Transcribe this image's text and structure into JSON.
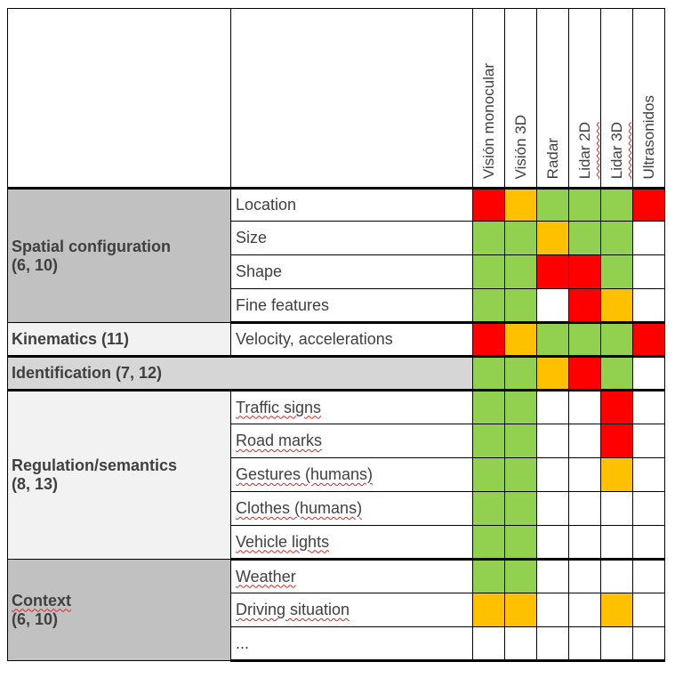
{
  "colors": {
    "green": "#92d050",
    "orange": "#ffc000",
    "red": "#ff0000",
    "white": "#ffffff"
  },
  "sensors": [
    "Visión monocular",
    "Visión 3D",
    "Radar",
    "Lidar 2D",
    "Lidar 3D",
    "Ultrasonidos"
  ],
  "categories": {
    "spatial": {
      "title": "Spatial configuration",
      "refs": "(6, 10)"
    },
    "kinematics": {
      "title": "Kinematics (11)"
    },
    "identification": {
      "title": "Identification (7, 12)"
    },
    "regulation": {
      "title": "Regulation/semantics",
      "refs": "(8, 13)"
    },
    "context": {
      "title": "Context",
      "refs": "(6, 10)"
    }
  },
  "features": {
    "location": "Location",
    "size": "Size",
    "shape": "Shape",
    "fine_features": "Fine features",
    "velocity": "Velocity, accelerations",
    "traffic_signs": "Traffic signs",
    "road_marks": "Road marks",
    "gestures": "Gestures (humans)",
    "clothes": "Clothes (humans)",
    "vehicle_lights": "Vehicle lights",
    "weather": "Weather",
    "driving_situation": "Driving situation",
    "more": "..."
  },
  "ratings": {
    "location": [
      "red",
      "orange",
      "green",
      "green",
      "green",
      "red"
    ],
    "size": [
      "green",
      "green",
      "orange",
      "green",
      "green",
      "white"
    ],
    "shape": [
      "green",
      "green",
      "red",
      "red",
      "green",
      "white"
    ],
    "fine_features": [
      "green",
      "green",
      "white",
      "red",
      "orange",
      "white"
    ],
    "velocity": [
      "red",
      "orange",
      "green",
      "green",
      "green",
      "red"
    ],
    "identification": [
      "green",
      "green",
      "orange",
      "red",
      "green",
      "white"
    ],
    "traffic_signs": [
      "green",
      "green",
      "white",
      "white",
      "red",
      "white"
    ],
    "road_marks": [
      "green",
      "green",
      "white",
      "white",
      "red",
      "white"
    ],
    "gestures": [
      "green",
      "green",
      "white",
      "white",
      "orange",
      "white"
    ],
    "clothes": [
      "green",
      "green",
      "white",
      "white",
      "white",
      "white"
    ],
    "vehicle_lights": [
      "green",
      "green",
      "white",
      "white",
      "white",
      "white"
    ],
    "weather": [
      "green",
      "green",
      "white",
      "white",
      "white",
      "white"
    ],
    "driving_situation": [
      "orange",
      "orange",
      "white",
      "white",
      "orange",
      "white"
    ],
    "more": [
      "white",
      "white",
      "white",
      "white",
      "white",
      "white"
    ]
  }
}
